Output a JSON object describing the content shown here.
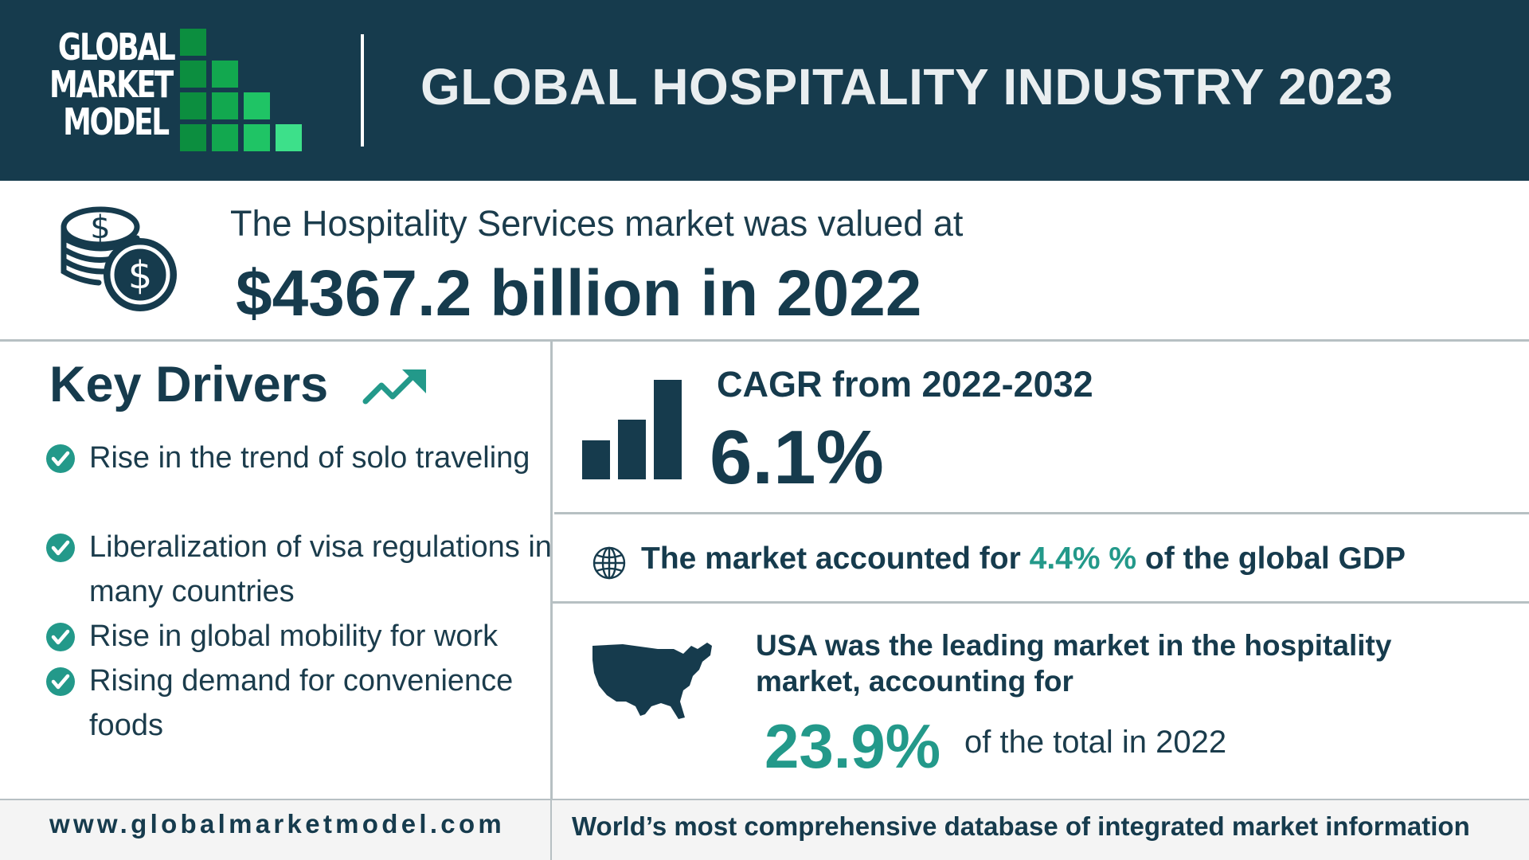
{
  "logo": {
    "lines": [
      "GLOBAL",
      "MARKET",
      "MODEL"
    ],
    "colors": [
      "#0c8e3f",
      "#12a84f",
      "#1fc465",
      "#3de08a"
    ]
  },
  "header": {
    "title": "GLOBAL HOSPITALITY INDUSTRY 2023",
    "background": "#163b4d"
  },
  "market_value": {
    "intro": "The Hospitality Services market was valued at",
    "headline": "$4367.2 billion in 2022",
    "icon": "money-coins-icon"
  },
  "key_drivers": {
    "title": "Key Drivers",
    "icon": "trend-up-arrow-icon",
    "items": [
      "Rise in the trend of solo traveling",
      "Liberalization of visa regulations in many countries",
      "Rise in global mobility for work",
      "Rising demand for convenience foods"
    ]
  },
  "cagr": {
    "label": "CAGR from 2022-2032",
    "value": "6.1%",
    "icon": "bar-chart-icon"
  },
  "gdp": {
    "prefix": "The market accounted for",
    "value": "4.4% %",
    "suffix": "of the global GDP",
    "icon": "globe-icon"
  },
  "usa": {
    "text": "USA was the leading market in the hospitality market, accounting for",
    "percent": "23.9%",
    "tail": "of the total in 2022",
    "icon": "usa-map-icon"
  },
  "footer": {
    "url": "www.globalmarketmodel.com",
    "tagline": "World’s most comprehensive database of integrated market information"
  },
  "colors": {
    "navy": "#163b4d",
    "teal": "#23998a",
    "divider": "#b7c0c3"
  }
}
